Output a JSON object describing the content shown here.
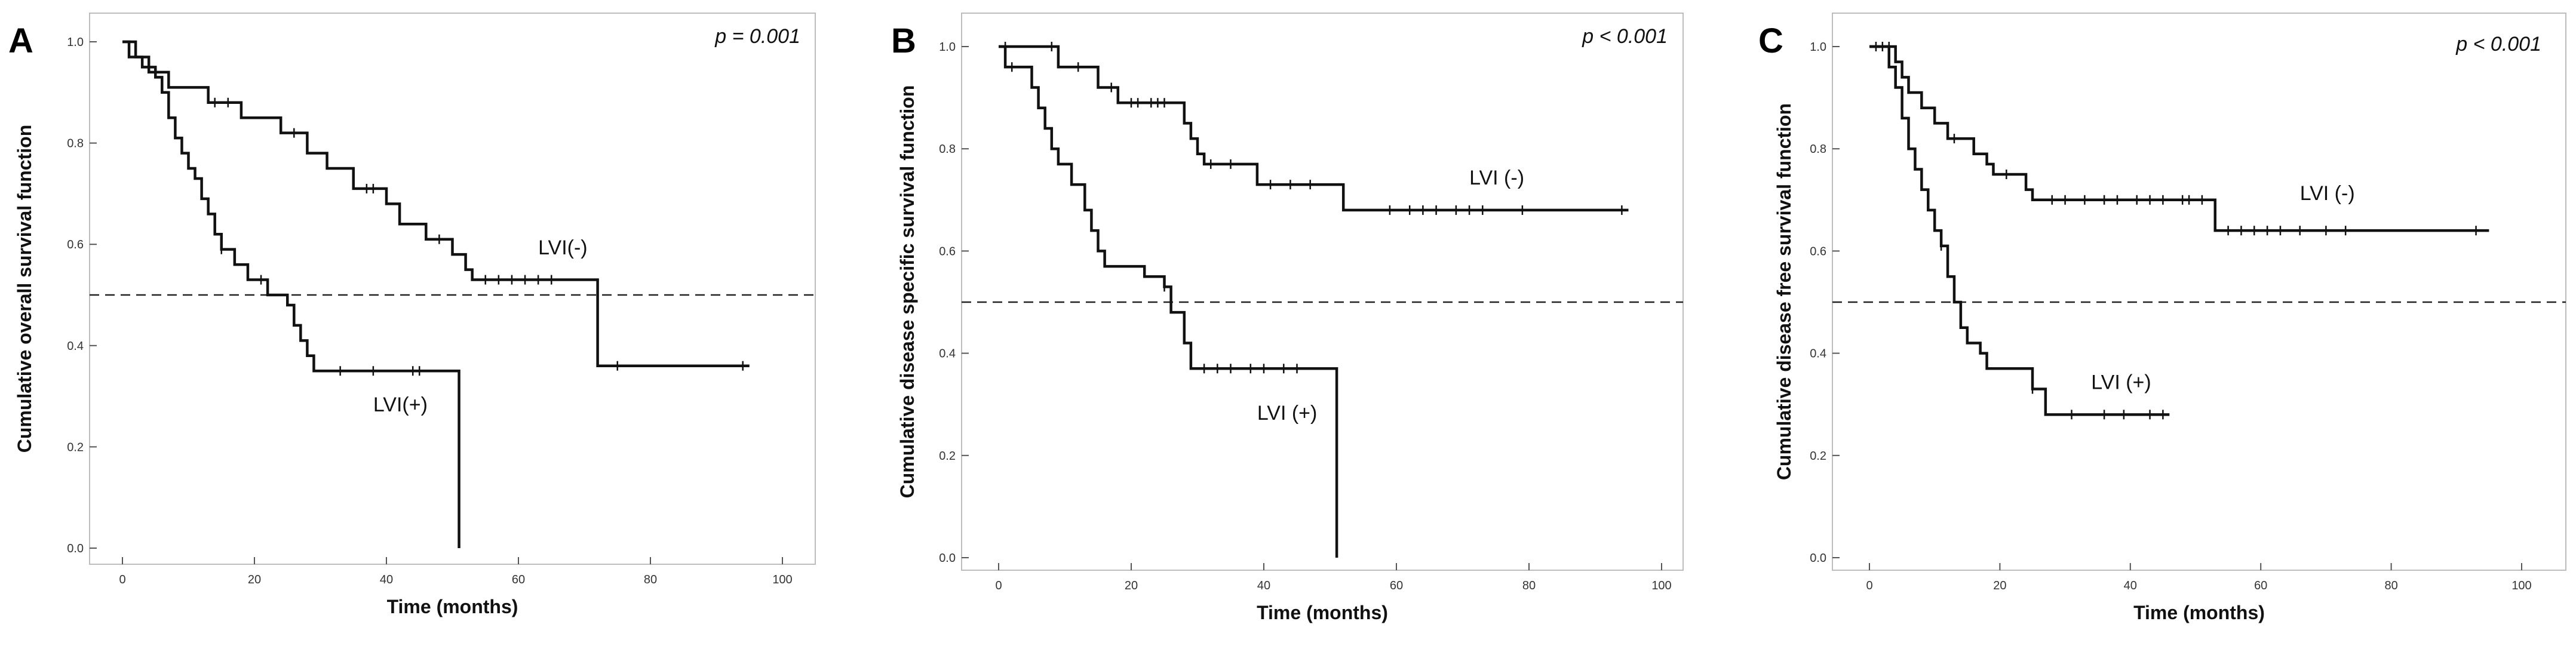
{
  "chart_data": [
    {
      "type": "line",
      "panel": "A",
      "p_value": "p  = 0.001",
      "xlabel": "Time (months)",
      "ylabel": "Cumulative overall survival function",
      "xlim": [
        0,
        100
      ],
      "ylim": [
        0,
        1
      ],
      "x_ticks": [
        0,
        20,
        40,
        60,
        80,
        100
      ],
      "x_tick_labels": [
        "0",
        "20",
        "40",
        "60",
        "80",
        "100"
      ],
      "y_ticks": [
        0,
        0.2,
        0.4,
        0.6,
        0.8,
        1.0
      ],
      "y_tick_labels": [
        "0.0",
        "0.2",
        "0.4",
        "0.6",
        "0.8",
        "1.0"
      ],
      "reference_line": 0.5,
      "series": [
        {
          "name": "LVI(-)",
          "label_at": [
            63,
            0.58
          ],
          "steps": [
            [
              0,
              1.0
            ],
            [
              2,
              0.97
            ],
            [
              4,
              0.94
            ],
            [
              7,
              0.91
            ],
            [
              13,
              0.88
            ],
            [
              18,
              0.85
            ],
            [
              24,
              0.82
            ],
            [
              28,
              0.78
            ],
            [
              31,
              0.75
            ],
            [
              35,
              0.71
            ],
            [
              40,
              0.68
            ],
            [
              42,
              0.64
            ],
            [
              46,
              0.61
            ],
            [
              50,
              0.58
            ],
            [
              52,
              0.55
            ],
            [
              53,
              0.53
            ],
            [
              72,
              0.53
            ],
            [
              72,
              0.36
            ],
            [
              95,
              0.36
            ]
          ],
          "censor_x": [
            5,
            14,
            16,
            26,
            37,
            38,
            48,
            55,
            57,
            59,
            61,
            63,
            65,
            75,
            94
          ]
        },
        {
          "name": "LVI(+)",
          "label_at": [
            38,
            0.27
          ],
          "steps": [
            [
              0,
              1.0
            ],
            [
              1,
              0.97
            ],
            [
              3,
              0.95
            ],
            [
              5,
              0.93
            ],
            [
              6,
              0.9
            ],
            [
              7,
              0.85
            ],
            [
              8,
              0.81
            ],
            [
              9,
              0.78
            ],
            [
              10,
              0.75
            ],
            [
              11,
              0.73
            ],
            [
              12,
              0.69
            ],
            [
              13,
              0.66
            ],
            [
              14,
              0.62
            ],
            [
              15,
              0.59
            ],
            [
              17,
              0.56
            ],
            [
              19,
              0.53
            ],
            [
              22,
              0.5
            ],
            [
              25,
              0.48
            ],
            [
              26,
              0.44
            ],
            [
              27,
              0.41
            ],
            [
              28,
              0.38
            ],
            [
              29,
              0.35
            ],
            [
              51,
              0.35
            ],
            [
              51,
              0.0
            ]
          ],
          "censor_x": [
            15,
            21,
            33,
            38,
            44,
            45
          ]
        }
      ]
    },
    {
      "type": "line",
      "panel": "B",
      "p_value": "p < 0.001",
      "xlabel": "Time (months)",
      "ylabel": "Cumulative disease specific survival function",
      "xlim": [
        0,
        100
      ],
      "ylim": [
        0,
        1
      ],
      "x_ticks": [
        0,
        20,
        40,
        60,
        80,
        100
      ],
      "x_tick_labels": [
        "0",
        "20",
        "40",
        "60",
        "80",
        "100"
      ],
      "y_ticks": [
        0,
        0.2,
        0.4,
        0.6,
        0.8,
        1.0
      ],
      "y_tick_labels": [
        "0.0",
        "0.2",
        "0.4",
        "0.6",
        "0.8",
        "1.0"
      ],
      "reference_line": 0.5,
      "series": [
        {
          "name": "LVI (-)",
          "label_at": [
            71,
            0.73
          ],
          "steps": [
            [
              0,
              1.0
            ],
            [
              8,
              1.0
            ],
            [
              9,
              0.96
            ],
            [
              14,
              0.96
            ],
            [
              15,
              0.92
            ],
            [
              18,
              0.89
            ],
            [
              27,
              0.89
            ],
            [
              28,
              0.85
            ],
            [
              29,
              0.82
            ],
            [
              30,
              0.79
            ],
            [
              31,
              0.77
            ],
            [
              37,
              0.77
            ],
            [
              39,
              0.73
            ],
            [
              51,
              0.73
            ],
            [
              52,
              0.68
            ],
            [
              95,
              0.68
            ]
          ],
          "censor_x": [
            1,
            8,
            12,
            17,
            20,
            21,
            23,
            24,
            25,
            32,
            35,
            41,
            44,
            47,
            59,
            62,
            64,
            66,
            69,
            71,
            73,
            79,
            94
          ]
        },
        {
          "name": "LVI (+)",
          "label_at": [
            39,
            0.27
          ],
          "steps": [
            [
              0,
              1.0
            ],
            [
              1,
              0.96
            ],
            [
              3,
              0.96
            ],
            [
              5,
              0.92
            ],
            [
              6,
              0.88
            ],
            [
              7,
              0.84
            ],
            [
              8,
              0.8
            ],
            [
              9,
              0.77
            ],
            [
              11,
              0.73
            ],
            [
              13,
              0.68
            ],
            [
              14,
              0.64
            ],
            [
              15,
              0.6
            ],
            [
              16,
              0.57
            ],
            [
              21,
              0.57
            ],
            [
              22,
              0.55
            ],
            [
              25,
              0.53
            ],
            [
              26,
              0.48
            ],
            [
              28,
              0.42
            ],
            [
              29,
              0.37
            ],
            [
              51,
              0.37
            ],
            [
              51,
              0.0
            ]
          ],
          "censor_x": [
            2,
            25,
            31,
            33,
            35,
            38,
            40,
            43,
            45
          ]
        }
      ]
    },
    {
      "type": "line",
      "panel": "C",
      "p_value": "p < 0.001",
      "xlabel": "Time (months)",
      "ylabel": "Cumulative disease free survival function",
      "xlim": [
        0,
        100
      ],
      "ylim": [
        0,
        1
      ],
      "x_ticks": [
        0,
        20,
        40,
        60,
        80,
        100
      ],
      "x_tick_labels": [
        "0",
        "20",
        "40",
        "60",
        "80",
        "100"
      ],
      "y_ticks": [
        0,
        0.2,
        0.4,
        0.6,
        0.8,
        1.0
      ],
      "y_tick_labels": [
        "0.0",
        "0.2",
        "0.4",
        "0.6",
        "0.8",
        "1.0"
      ],
      "reference_line": 0.5,
      "series": [
        {
          "name": "LVI (-)",
          "label_at": [
            66,
            0.7
          ],
          "steps": [
            [
              0,
              1.0
            ],
            [
              3,
              1.0
            ],
            [
              4,
              0.97
            ],
            [
              5,
              0.94
            ],
            [
              6,
              0.91
            ],
            [
              8,
              0.88
            ],
            [
              10,
              0.85
            ],
            [
              12,
              0.82
            ],
            [
              15,
              0.82
            ],
            [
              16,
              0.79
            ],
            [
              18,
              0.77
            ],
            [
              19,
              0.75
            ],
            [
              23,
              0.75
            ],
            [
              24,
              0.72
            ],
            [
              25,
              0.7
            ],
            [
              53,
              0.7
            ],
            [
              53,
              0.64
            ],
            [
              95,
              0.64
            ]
          ],
          "censor_x": [
            1,
            2,
            3,
            13,
            21,
            28,
            30,
            33,
            36,
            38,
            41,
            43,
            45,
            48,
            49,
            51,
            55,
            57,
            59,
            61,
            63,
            66,
            70,
            73,
            93
          ]
        },
        {
          "name": "LVI (+)",
          "label_at": [
            34,
            0.33
          ],
          "steps": [
            [
              0,
              1.0
            ],
            [
              2,
              1.0
            ],
            [
              3,
              0.96
            ],
            [
              4,
              0.92
            ],
            [
              5,
              0.86
            ],
            [
              6,
              0.8
            ],
            [
              7,
              0.76
            ],
            [
              8,
              0.72
            ],
            [
              9,
              0.68
            ],
            [
              10,
              0.64
            ],
            [
              11,
              0.61
            ],
            [
              12,
              0.55
            ],
            [
              13,
              0.5
            ],
            [
              14,
              0.45
            ],
            [
              15,
              0.42
            ],
            [
              17,
              0.4
            ],
            [
              18,
              0.37
            ],
            [
              24,
              0.37
            ],
            [
              25,
              0.33
            ],
            [
              26,
              0.33
            ],
            [
              27,
              0.28
            ],
            [
              46,
              0.28
            ]
          ],
          "censor_x": [
            11,
            25,
            31,
            36,
            39,
            43,
            45
          ]
        }
      ]
    }
  ]
}
